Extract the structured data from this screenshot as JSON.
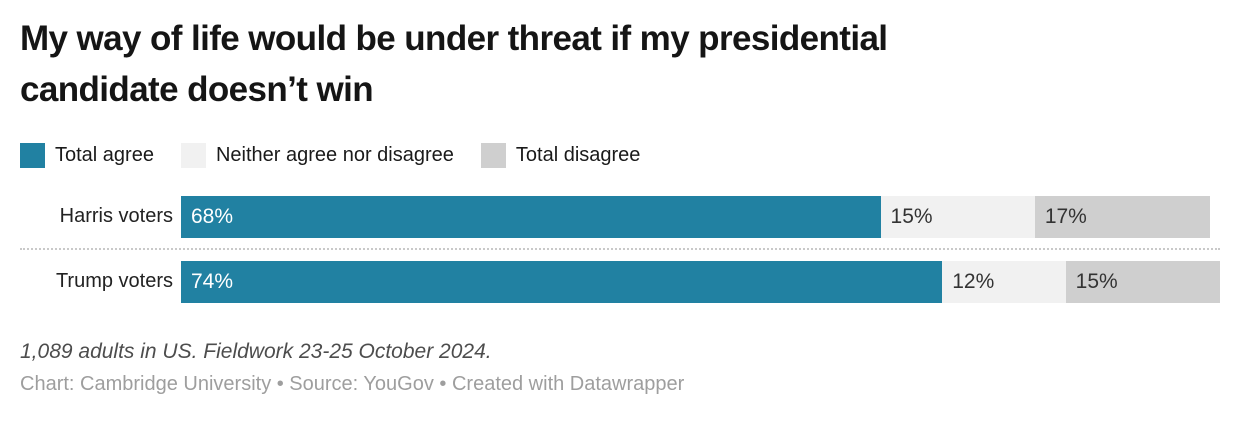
{
  "header": {
    "title": "My way of life would be under threat if my presidential\ncandidate doesn’t win"
  },
  "chart_data": {
    "type": "bar",
    "stacked": true,
    "horizontal": true,
    "unit": "%",
    "x_max": 101,
    "grid": false,
    "legend_position": "top",
    "legend": [
      {
        "name": "Total agree",
        "color": "#2181a2",
        "label_color": "#ffffff"
      },
      {
        "name": "Neither agree nor disagree",
        "color": "#f1f1f1",
        "label_color": "#333333"
      },
      {
        "name": "Total disagree",
        "color": "#cfcfcf",
        "label_color": "#333333"
      }
    ],
    "rows": [
      {
        "category": "Harris voters",
        "values": [
          68,
          15,
          17
        ],
        "labels": [
          "68%",
          "15%",
          "17%"
        ]
      },
      {
        "category": "Trump voters",
        "values": [
          74,
          12,
          15
        ],
        "labels": [
          "74%",
          "12%",
          "15%"
        ]
      }
    ]
  },
  "footer": {
    "note": "1,089 adults in US. Fieldwork 23-25 October 2024.",
    "attribution": "Chart: Cambridge University • Source: YouGov • Created with Datawrapper"
  }
}
